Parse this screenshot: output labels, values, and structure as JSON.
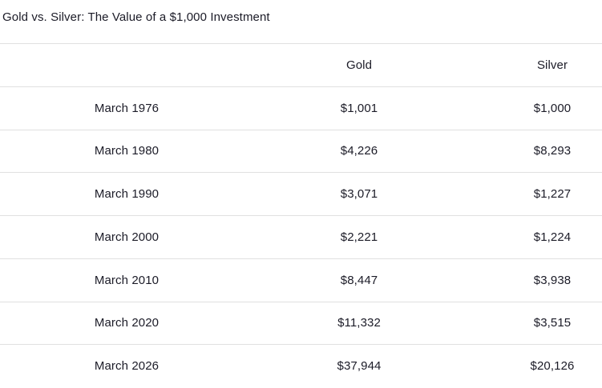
{
  "page": {
    "title": "Gold vs. Silver: The Value of a $1,000 Investment"
  },
  "table": {
    "headers": {
      "date": "",
      "gold": "Gold",
      "silver": "Silver"
    },
    "rows": [
      {
        "date": "March 1976",
        "gold": "$1,001",
        "silver": "$1,000"
      },
      {
        "date": "March 1980",
        "gold": "$4,226",
        "silver": "$8,293"
      },
      {
        "date": "March 1990",
        "gold": "$3,071",
        "silver": "$1,227"
      },
      {
        "date": "March 2000",
        "gold": "$2,221",
        "silver": "$1,224"
      },
      {
        "date": "March 2010",
        "gold": "$8,447",
        "silver": "$3,938"
      },
      {
        "date": "March 2020",
        "gold": "$11,332",
        "silver": "$3,515"
      },
      {
        "date": "March 2026",
        "gold": "$37,944",
        "silver": "$20,126"
      }
    ]
  },
  "colors": {
    "text": "#1b1b27",
    "border": "#e0e0e0",
    "background": "#ffffff"
  },
  "chart_data": {
    "type": "table",
    "title": "Gold vs. Silver: The Value of a $1,000 Investment",
    "categories": [
      "March 1976",
      "March 1980",
      "March 1990",
      "March 2000",
      "March 2010",
      "March 2020",
      "March 2026"
    ],
    "series": [
      {
        "name": "Gold",
        "values": [
          1001,
          4226,
          3071,
          2221,
          8447,
          11332,
          37944
        ]
      },
      {
        "name": "Silver",
        "values": [
          1000,
          8293,
          1227,
          1224,
          3938,
          3515,
          20126
        ]
      }
    ],
    "value_unit": "USD",
    "layout": {
      "grid": "horizontal-row-dividers",
      "legend": "column-headers"
    }
  }
}
